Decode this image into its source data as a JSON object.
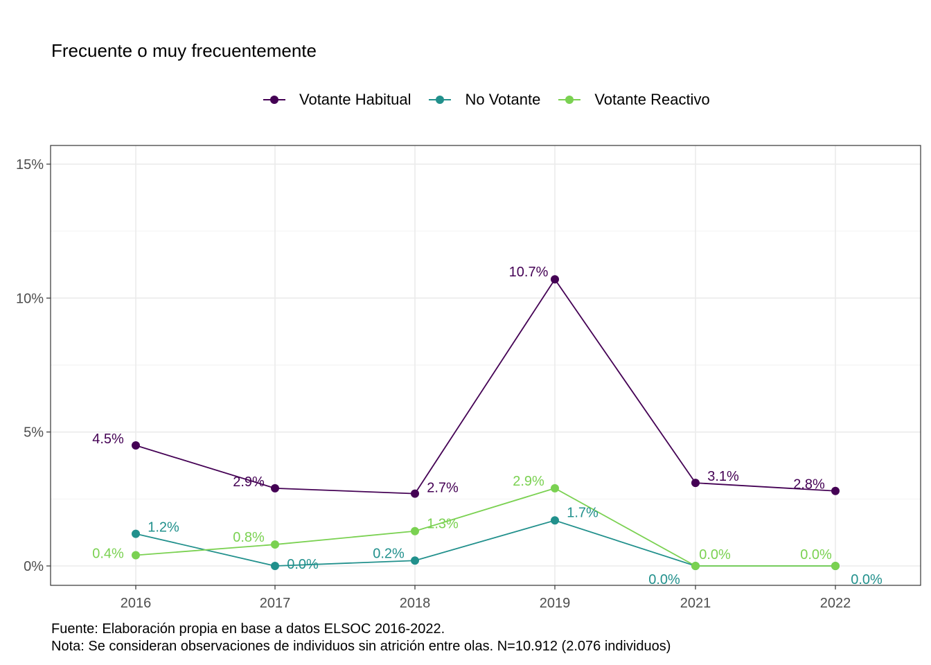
{
  "chart_data": {
    "type": "line",
    "title": "Frecuente o muy frecuentemente",
    "x": [
      "2016",
      "2017",
      "2018",
      "2019",
      "2021",
      "2022"
    ],
    "series": [
      {
        "name": "Votante Habitual",
        "color": "#440154",
        "values": [
          4.5,
          2.9,
          2.7,
          10.7,
          3.1,
          2.8
        ],
        "labels": [
          "4.5%",
          "2.9%",
          "2.7%",
          "10.7%",
          "3.1%",
          "2.8%"
        ]
      },
      {
        "name": "No Votante",
        "color": "#21908C",
        "values": [
          1.2,
          0.0,
          0.2,
          1.7,
          0.0,
          0.0
        ],
        "labels": [
          "1.2%",
          "0.0%",
          "0.2%",
          "1.7%",
          "0.0%",
          "0.0%"
        ]
      },
      {
        "name": "Votante Reactivo",
        "color": "#7AD151",
        "values": [
          0.4,
          0.8,
          1.3,
          2.9,
          0.0,
          0.0
        ],
        "labels": [
          "0.4%",
          "0.8%",
          "1.3%",
          "2.9%",
          "0.0%",
          "0.0%"
        ]
      }
    ],
    "ylim": [
      0,
      15
    ],
    "yticks": [
      0,
      5,
      10,
      15
    ],
    "ytick_labels": [
      "0%",
      "5%",
      "10%",
      "15%"
    ],
    "xlabel": "",
    "ylabel": "",
    "grid": true,
    "legend_position": "top"
  },
  "caption": {
    "line1": "Fuente: Elaboración propia en base a datos ELSOC 2016-2022.",
    "line2": "Nota: Se consideran observaciones de individuos sin atrición entre olas. N=10.912 (2.076 individuos)"
  }
}
